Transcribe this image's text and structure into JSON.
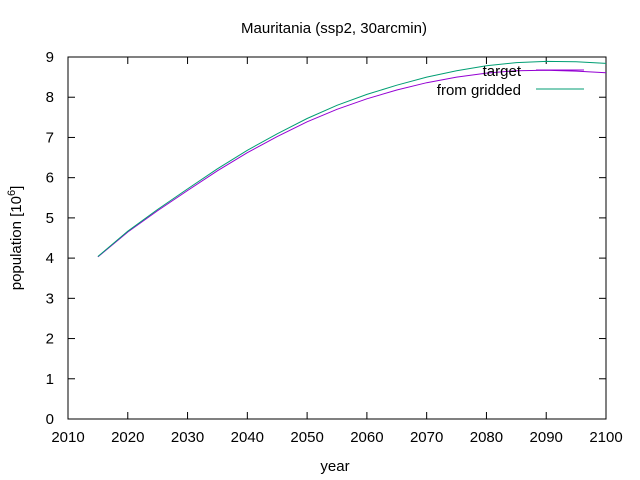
{
  "chart_data": {
    "type": "line",
    "title": "Mauritania (ssp2, 30arcmin)",
    "xlabel": "year",
    "ylabel_prefix": "population [10",
    "ylabel_exp": "6",
    "ylabel_suffix": "]",
    "xlim": [
      2010,
      2100
    ],
    "ylim": [
      0,
      9
    ],
    "xticks": [
      2010,
      2020,
      2030,
      2040,
      2050,
      2060,
      2070,
      2080,
      2090,
      2100
    ],
    "yticks": [
      0,
      1,
      2,
      3,
      4,
      5,
      6,
      7,
      8,
      9
    ],
    "grid": false,
    "legend_position": "top-right",
    "x": [
      2015,
      2020,
      2025,
      2030,
      2035,
      2040,
      2045,
      2050,
      2055,
      2060,
      2065,
      2070,
      2075,
      2080,
      2085,
      2090,
      2095,
      2100
    ],
    "series": [
      {
        "name": "target",
        "color": "#9400d3",
        "values": [
          4.03,
          4.65,
          5.18,
          5.68,
          6.17,
          6.62,
          7.02,
          7.39,
          7.7,
          7.96,
          8.18,
          8.36,
          8.5,
          8.6,
          8.66,
          8.67,
          8.65,
          8.61
        ]
      },
      {
        "name": "from gridded",
        "color": "#009e73",
        "values": [
          4.04,
          4.67,
          5.21,
          5.72,
          6.22,
          6.68,
          7.09,
          7.47,
          7.8,
          8.07,
          8.3,
          8.5,
          8.66,
          8.78,
          8.86,
          8.89,
          8.88,
          8.84
        ]
      }
    ]
  }
}
